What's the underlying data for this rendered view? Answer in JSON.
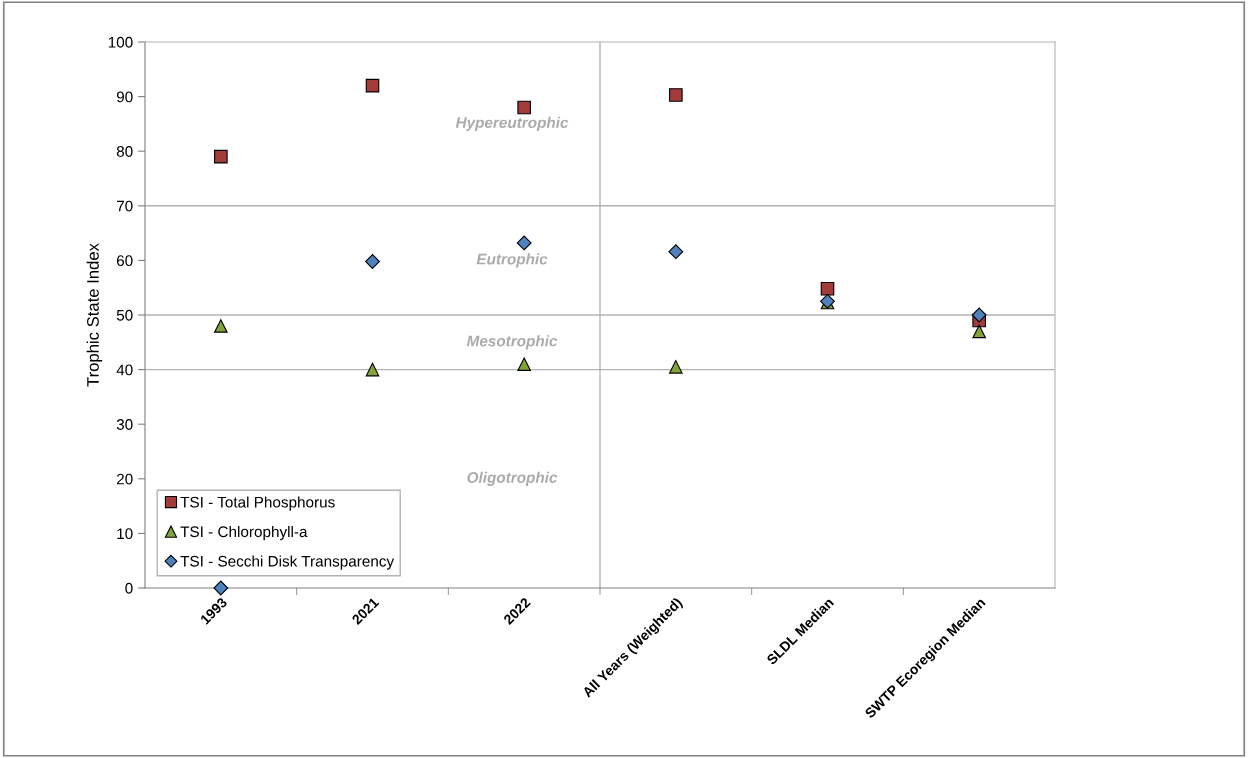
{
  "chart_data": {
    "type": "scatter",
    "ylabel": "Trophic State Index",
    "categories": [
      "1993",
      "2021",
      "2022",
      "All Years (Weighted)",
      "SLDL Median",
      "SWTP Ecoregion Median"
    ],
    "series": [
      {
        "name": "TSI - Total Phosphorus",
        "color": "#a33b3b",
        "marker": "square",
        "values": [
          79,
          92,
          88,
          90.3,
          54.8,
          49
        ]
      },
      {
        "name": "TSI - Chlorophyll-a",
        "color": "#82a23c",
        "marker": "triangle",
        "values": [
          48,
          40,
          41,
          40.5,
          52.3,
          47
        ]
      },
      {
        "name": "TSI - Secchi Disk Transparency",
        "color": "#4f81bd",
        "marker": "diamond",
        "values": [
          0,
          59.8,
          63.2,
          61.6,
          52.5,
          50
        ]
      }
    ],
    "ylim": [
      0,
      100
    ],
    "yticks": [
      0,
      10,
      20,
      30,
      40,
      50,
      60,
      70,
      80,
      90,
      100
    ],
    "ref_lines": [
      {
        "axis": "y",
        "value": 70,
        "color": "#b3b3b3"
      },
      {
        "axis": "y",
        "value": 50,
        "color": "#b3b3b3"
      },
      {
        "axis": "y",
        "value": 40,
        "color": "#b3b3b3"
      }
    ],
    "annotations": [
      "Hypereutrophic",
      "Eutrophic",
      "Mesotrophic",
      "Oligotrophic"
    ],
    "legend": "bottom left",
    "grid": false
  }
}
